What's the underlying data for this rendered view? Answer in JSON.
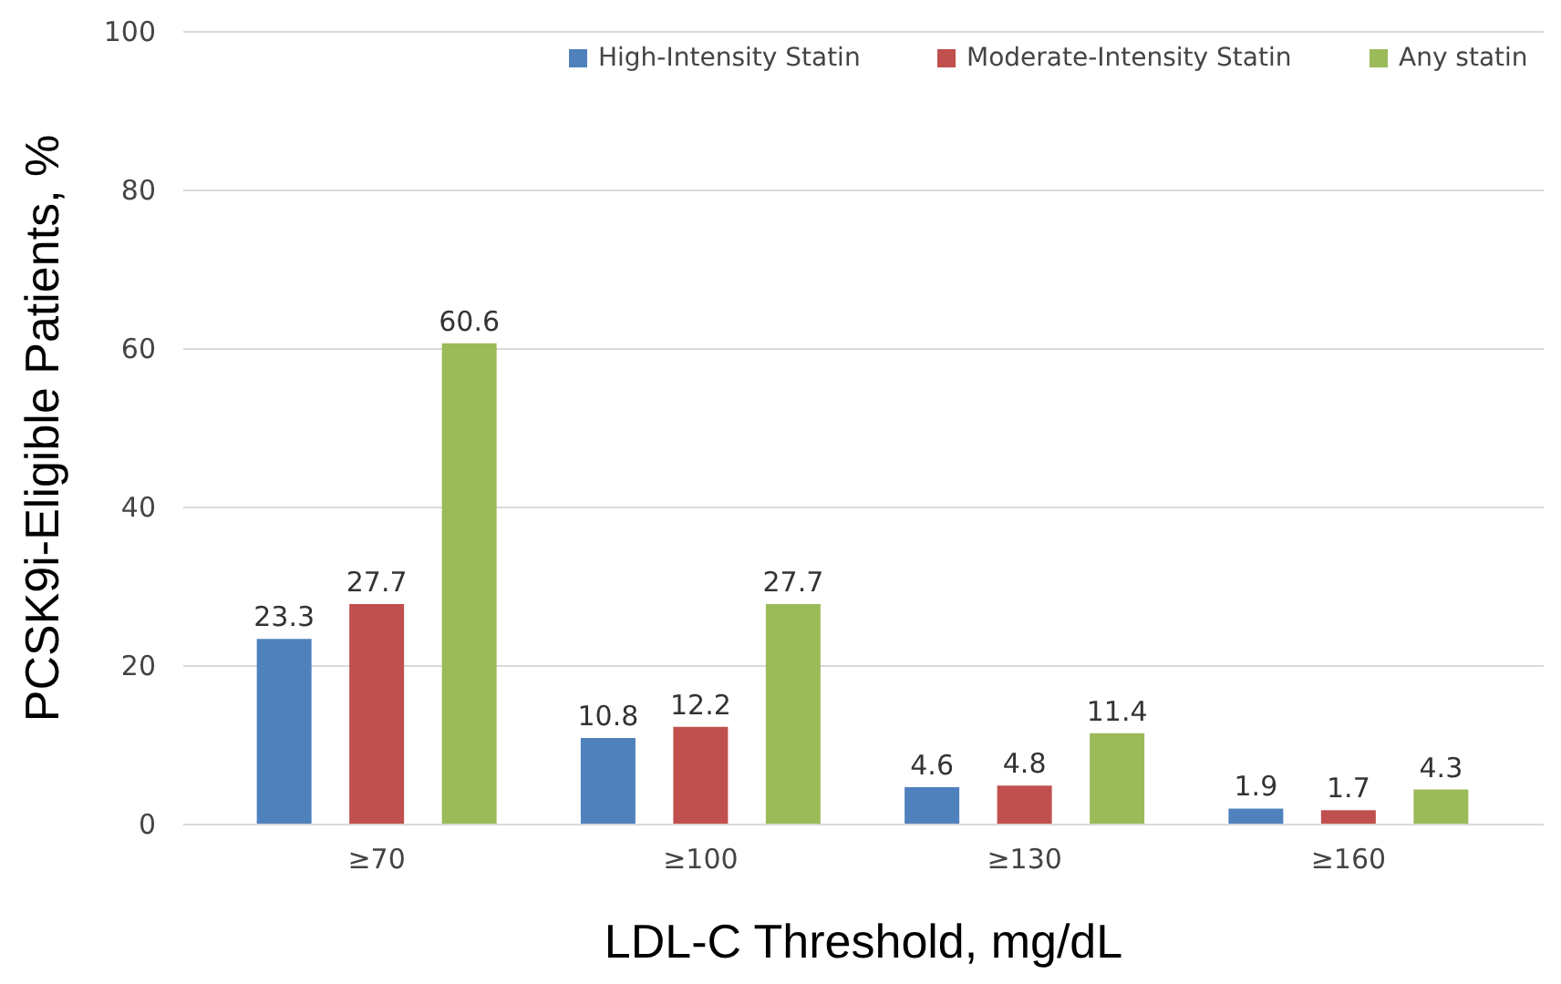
{
  "chart_data": {
    "type": "bar",
    "xlabel": "LDL-C Threshold, mg/dL",
    "ylabel": "PCSK9i-Eligible Patients, %",
    "categories": [
      "≥70",
      "≥100",
      "≥130",
      "≥160"
    ],
    "series": [
      {
        "name": "High-Intensity Statin",
        "color": "#4f81bd",
        "values": [
          23.3,
          10.8,
          4.6,
          1.9
        ]
      },
      {
        "name": "Moderate-Intensity Statin",
        "color": "#c0504d",
        "values": [
          27.7,
          12.2,
          4.8,
          1.7
        ]
      },
      {
        "name": "Any statin",
        "color": "#9bbb59",
        "values": [
          60.6,
          27.7,
          11.4,
          4.3
        ]
      }
    ],
    "ylim": [
      0,
      100
    ],
    "yticks": [
      0,
      20,
      40,
      60,
      80,
      100
    ],
    "grid": "y",
    "legend": "top right",
    "data_labels": true
  }
}
